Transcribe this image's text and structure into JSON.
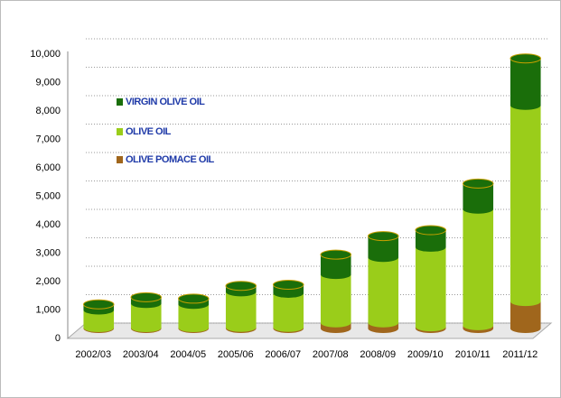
{
  "chart_data": {
    "type": "bar",
    "stacked": true,
    "categories": [
      "2002/03",
      "2003/04",
      "2004/05",
      "2005/06",
      "2006/07",
      "2007/08",
      "2008/09",
      "2009/10",
      "2010/11",
      "2011/12"
    ],
    "series": [
      {
        "name": "OLIVE POMACE OIL",
        "color": "#a0661c",
        "values": [
          30,
          30,
          30,
          40,
          40,
          200,
          200,
          60,
          100,
          950
        ]
      },
      {
        "name": "OLIVE OIL",
        "color": "#9acd1a",
        "values": [
          620,
          850,
          820,
          1250,
          1200,
          1700,
          2300,
          2800,
          4100,
          6900
        ]
      },
      {
        "name": "VIRGIN OLIVE OIL",
        "color": "#1a6e0a",
        "values": [
          200,
          220,
          200,
          210,
          300,
          700,
          750,
          600,
          900,
          1650
        ]
      }
    ],
    "ylim": [
      0,
      10000
    ],
    "yticks": [
      0,
      {
        "value": 1000,
        "label": "1,000"
      },
      {
        "value": 2000,
        "label": "2,000"
      },
      {
        "value": 3000,
        "label": "3,000"
      },
      {
        "value": 4000,
        "label": "4,000"
      },
      {
        "value": 5000,
        "label": "5,000"
      },
      {
        "value": 6000,
        "label": "6,000"
      },
      {
        "value": 7000,
        "label": "7,000"
      },
      {
        "value": 8000,
        "label": "8,000"
      },
      {
        "value": 9000,
        "label": "9,000"
      },
      {
        "value": 10000,
        "label": "10,000"
      }
    ],
    "grid": true
  }
}
